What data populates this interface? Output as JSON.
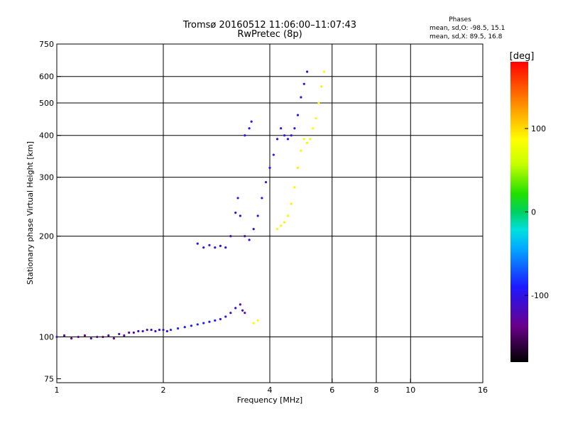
{
  "header": {
    "title_line1": "Tromsø 20160512 11:06:00–11:07:43",
    "title_line2": "RwPretec (8p)",
    "stats_title": "Phases",
    "stats_o": "mean, sd,O: -98.5, 15.1",
    "stats_x": "mean, sd,X:  89.5, 16.8"
  },
  "colorbar": {
    "unit": "[deg]",
    "ticks": [
      {
        "value": 100,
        "label": "100"
      },
      {
        "value": 0,
        "label": "0"
      },
      {
        "value": -100,
        "label": "-100"
      }
    ],
    "range": [
      -180,
      180
    ]
  },
  "chart_data": {
    "type": "scatter",
    "title": "Tromsø 20160512 11:06:00–11:07:43",
    "subtitle": "RwPretec (8p)",
    "xlabel": "Frequency [MHz]",
    "ylabel": "Stationary phase Virtual Height [km]",
    "x_scale": "log",
    "y_scale": "log",
    "xlim": [
      1,
      16
    ],
    "ylim": [
      73,
      750
    ],
    "x_ticks": [
      {
        "value": 1,
        "label": "1"
      },
      {
        "value": 2,
        "label": "2"
      },
      {
        "value": 4,
        "label": "4"
      },
      {
        "value": 6,
        "label": "6"
      },
      {
        "value": 8,
        "label": "8"
      },
      {
        "value": 10,
        "label": "10"
      },
      {
        "value": 16,
        "label": "16"
      }
    ],
    "y_ticks": [
      {
        "value": 75,
        "label": "75"
      },
      {
        "value": 100,
        "label": "100"
      },
      {
        "value": 200,
        "label": "200"
      },
      {
        "value": 300,
        "label": "300"
      },
      {
        "value": 400,
        "label": "400"
      },
      {
        "value": 500,
        "label": "500"
      },
      {
        "value": 600,
        "label": "600"
      },
      {
        "value": 750,
        "label": "750"
      }
    ],
    "grid_x": [
      2,
      4,
      6,
      8,
      10
    ],
    "grid_y": [
      100,
      200,
      300,
      400,
      500,
      600
    ],
    "series": [
      {
        "mode": "O",
        "points": [
          [
            1.0,
            100,
            -110
          ],
          [
            1.05,
            101,
            -120
          ],
          [
            1.1,
            99,
            -135
          ],
          [
            1.15,
            100,
            -125
          ],
          [
            1.2,
            101,
            -140
          ],
          [
            1.25,
            99,
            -115
          ],
          [
            1.3,
            100,
            -130
          ],
          [
            1.35,
            100,
            -145
          ],
          [
            1.4,
            101,
            -120
          ],
          [
            1.45,
            99,
            -135
          ],
          [
            1.5,
            102,
            -110
          ],
          [
            1.55,
            101,
            -125
          ],
          [
            1.6,
            103,
            -130
          ],
          [
            1.65,
            103,
            -118
          ],
          [
            1.7,
            104,
            -110
          ],
          [
            1.75,
            104,
            -100
          ],
          [
            1.8,
            105,
            -112
          ],
          [
            1.85,
            105,
            -120
          ],
          [
            1.9,
            104,
            -105
          ],
          [
            1.95,
            105,
            -100
          ],
          [
            2.0,
            105,
            -110
          ],
          [
            2.05,
            104,
            -95
          ],
          [
            2.1,
            105,
            -85
          ],
          [
            2.2,
            106,
            -88
          ],
          [
            2.3,
            107,
            -92
          ],
          [
            2.4,
            108,
            -90
          ],
          [
            2.5,
            109,
            -88
          ],
          [
            2.6,
            110,
            -92
          ],
          [
            2.7,
            111,
            -95
          ],
          [
            2.8,
            112,
            -90
          ],
          [
            2.9,
            113,
            -95
          ],
          [
            3.0,
            115,
            -100
          ],
          [
            3.1,
            118,
            -110
          ],
          [
            3.2,
            122,
            -115
          ],
          [
            3.3,
            125,
            -120
          ],
          [
            3.35,
            120,
            -125
          ],
          [
            3.4,
            118,
            -110
          ],
          [
            2.5,
            190,
            -100
          ],
          [
            2.6,
            185,
            -105
          ],
          [
            2.7,
            188,
            -100
          ],
          [
            2.8,
            185,
            -105
          ],
          [
            2.9,
            187,
            -100
          ],
          [
            3.0,
            185,
            -110
          ],
          [
            3.1,
            200,
            -115
          ],
          [
            3.2,
            235,
            -110
          ],
          [
            3.25,
            260,
            -100
          ],
          [
            3.3,
            230,
            -110
          ],
          [
            3.4,
            200,
            -115
          ],
          [
            3.5,
            195,
            -110
          ],
          [
            3.6,
            210,
            -105
          ],
          [
            3.7,
            230,
            -100
          ],
          [
            3.8,
            260,
            -98
          ],
          [
            3.9,
            290,
            -95
          ],
          [
            4.0,
            320,
            -95
          ],
          [
            4.1,
            350,
            -95
          ],
          [
            4.2,
            390,
            -98
          ],
          [
            4.3,
            420,
            -100
          ],
          [
            4.4,
            400,
            -100
          ],
          [
            4.5,
            390,
            -100
          ],
          [
            4.6,
            400,
            -100
          ],
          [
            4.7,
            420,
            -100
          ],
          [
            4.8,
            460,
            -100
          ],
          [
            4.9,
            520,
            -100
          ],
          [
            5.0,
            570,
            -100
          ],
          [
            5.1,
            620,
            -100
          ],
          [
            3.5,
            420,
            -100
          ],
          [
            3.55,
            440,
            -100
          ],
          [
            3.4,
            400,
            -100
          ]
        ]
      },
      {
        "mode": "X",
        "points": [
          [
            4.2,
            210,
            90
          ],
          [
            4.3,
            215,
            90
          ],
          [
            4.4,
            220,
            92
          ],
          [
            4.5,
            230,
            90
          ],
          [
            4.6,
            250,
            92
          ],
          [
            4.7,
            280,
            90
          ],
          [
            4.8,
            320,
            92
          ],
          [
            4.9,
            360,
            90
          ],
          [
            5.0,
            390,
            90
          ],
          [
            5.1,
            380,
            92
          ],
          [
            5.2,
            390,
            90
          ],
          [
            5.3,
            420,
            88
          ],
          [
            5.4,
            450,
            90
          ],
          [
            5.5,
            500,
            90
          ],
          [
            5.6,
            560,
            92
          ],
          [
            5.7,
            620,
            90
          ],
          [
            3.6,
            110,
            90
          ],
          [
            3.7,
            112,
            90
          ]
        ]
      }
    ]
  }
}
